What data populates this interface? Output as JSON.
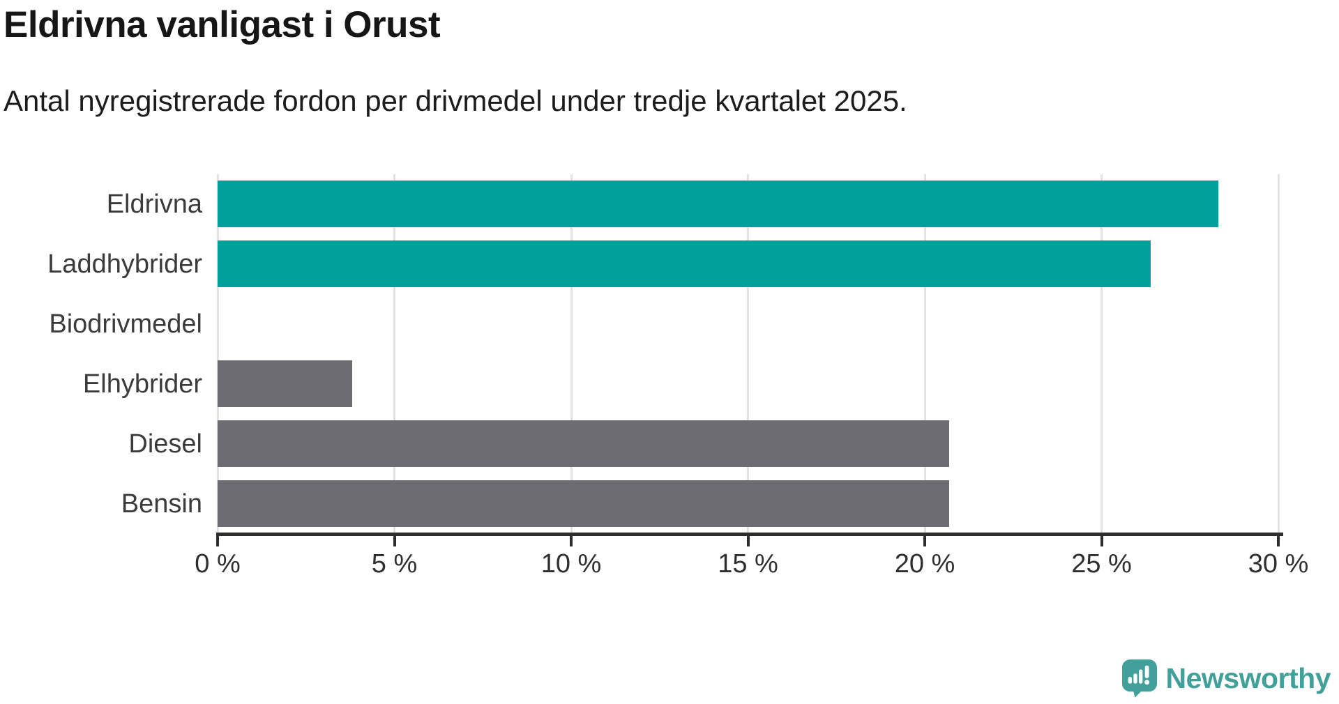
{
  "chart_data": {
    "type": "bar",
    "orientation": "horizontal",
    "title": "Eldrivna vanligast i Orust",
    "subtitle": "Antal nyregistrerade fordon per drivmedel under tredje kvartalet 2025.",
    "categories": [
      "Eldrivna",
      "Laddhybrider",
      "Biodrivmedel",
      "Elhybrider",
      "Diesel",
      "Bensin"
    ],
    "values": [
      28.3,
      26.4,
      0,
      3.8,
      20.7,
      20.7
    ],
    "value_unit": "percent",
    "bar_colors": [
      "#00a19a",
      "#00a19a",
      null,
      "#6c6c72",
      "#6c6c72",
      "#6c6c72"
    ],
    "highlight_color": "#00a19a",
    "neutral_color": "#6c6c72",
    "xlim": [
      0,
      30
    ],
    "x_tick_values": [
      0,
      5,
      10,
      15,
      20,
      25,
      30
    ],
    "x_tick_labels": [
      "0 %",
      "5 %",
      "10 %",
      "15 %",
      "20 %",
      "25 %",
      "30 %"
    ],
    "grid": "vertical-light-gray",
    "legend": "none",
    "axis_color": "#2d2d2d",
    "grid_color": "#e3e3e3"
  },
  "branding": {
    "wordmark": "Newsworthy",
    "logo_color": "#42a09a",
    "icon": "newsworthy-speech-bubble-chart-icon"
  }
}
